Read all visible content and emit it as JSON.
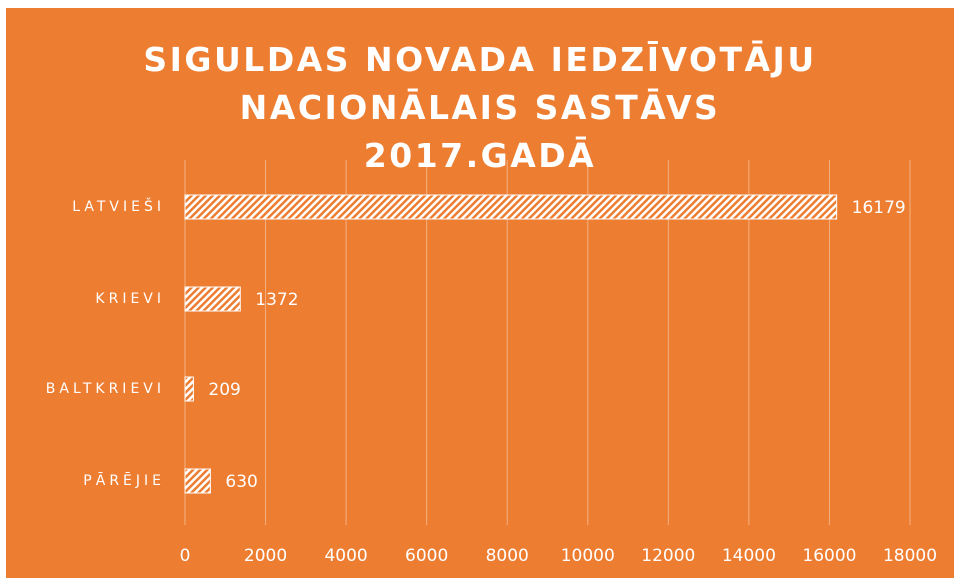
{
  "chart_data": {
    "type": "bar",
    "orientation": "horizontal",
    "title": "SIGULDAS NOVADA IEDZĪVOTĀJU NACIONĀLAIS SASTĀVS 2017.GADĀ",
    "categories": [
      "LATVIEŠI",
      "KRIEVI",
      "BALTKRIEVI",
      "PĀRĒJIE"
    ],
    "values": [
      16179,
      1372,
      209,
      630
    ],
    "color": "#ffffff",
    "background": "#ed7d31",
    "xlim": [
      0,
      18000
    ],
    "xticks": [
      0,
      2000,
      4000,
      6000,
      8000,
      10000,
      12000,
      14000,
      16000,
      18000
    ],
    "grid": true
  }
}
